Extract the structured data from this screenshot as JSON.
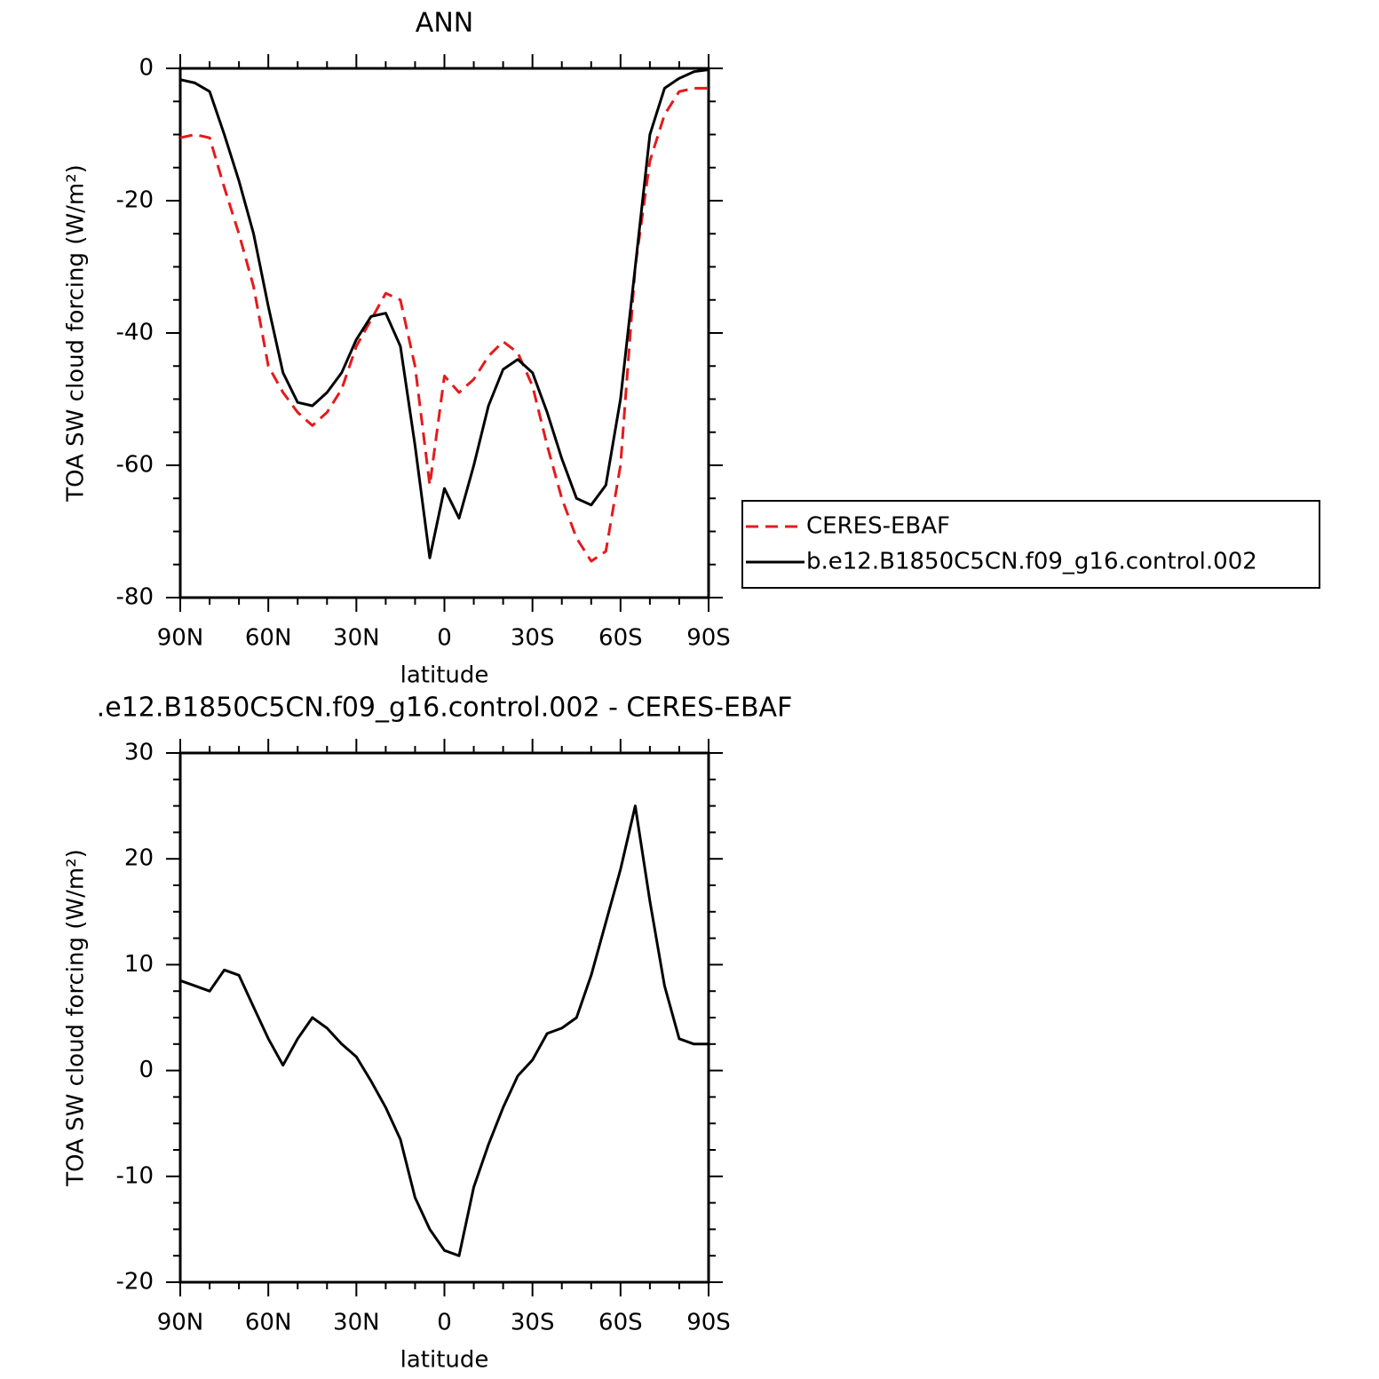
{
  "chart_data": [
    {
      "type": "line",
      "title": "ANN",
      "xlabel": "latitude",
      "ylabel": "TOA SW cloud forcing (W/m²)",
      "x": [
        90,
        85,
        80,
        75,
        70,
        65,
        60,
        55,
        50,
        45,
        40,
        35,
        30,
        25,
        20,
        15,
        10,
        5,
        0,
        -5,
        -10,
        -15,
        -20,
        -25,
        -30,
        -35,
        -40,
        -45,
        -50,
        -55,
        -60,
        -65,
        -70,
        -75,
        -80,
        -85,
        -90
      ],
      "xlim": [
        90,
        -90
      ],
      "xticks": [
        {
          "value": 90,
          "label": "90N"
        },
        {
          "value": 60,
          "label": "60N"
        },
        {
          "value": 30,
          "label": "30N"
        },
        0,
        {
          "value": -30,
          "label": "30S"
        },
        {
          "value": -60,
          "label": "60S"
        },
        {
          "value": -90,
          "label": "90S"
        }
      ],
      "ylim": [
        -80,
        0
      ],
      "yticks": [
        -80,
        -60,
        -40,
        -20,
        0
      ],
      "legend": "right",
      "series": [
        {
          "name": "CERES-EBAF",
          "color": "#e41a1c",
          "line_style": "dashed",
          "values": [
            -10.5,
            -10,
            -10.5,
            -18,
            -25,
            -33,
            -45,
            -49,
            -52,
            -54,
            -52,
            -48.5,
            -42,
            -38,
            -34,
            -35,
            -45,
            -63,
            -46.5,
            -49,
            -47,
            -43.5,
            -41.3,
            -43,
            -48,
            -57,
            -65,
            -71,
            -74.5,
            -73,
            -60,
            -30,
            -14,
            -7,
            -3.5,
            -3,
            -3
          ]
        },
        {
          "name": "b.e12.B1850C5CN.f09_g16.control.002",
          "color": "#000000",
          "line_style": "solid",
          "values": [
            -1.7,
            -2.2,
            -3.5,
            -10,
            -17,
            -25,
            -36,
            -46,
            -50.5,
            -51,
            -49,
            -46,
            -41,
            -37.5,
            -37,
            -42,
            -57,
            -74,
            -63.5,
            -68,
            -60,
            -51,
            -45.5,
            -44,
            -46,
            -52,
            -59,
            -65,
            -66,
            -63,
            -50,
            -30,
            -10,
            -3,
            -1.5,
            -0.5,
            -0.2
          ]
        }
      ]
    },
    {
      "type": "line",
      "title": ".e12.B1850C5CN.f09_g16.control.002 - CERES-EBAF",
      "xlabel": "latitude",
      "ylabel": "TOA SW cloud forcing (W/m²)",
      "x": [
        90,
        85,
        80,
        75,
        70,
        65,
        60,
        55,
        50,
        45,
        40,
        35,
        30,
        25,
        20,
        15,
        10,
        5,
        0,
        -5,
        -10,
        -15,
        -20,
        -25,
        -30,
        -35,
        -40,
        -45,
        -50,
        -55,
        -60,
        -65,
        -70,
        -75,
        -80,
        -85,
        -90
      ],
      "xlim": [
        90,
        -90
      ],
      "xticks": [
        {
          "value": 90,
          "label": "90N"
        },
        {
          "value": 60,
          "label": "60N"
        },
        {
          "value": 30,
          "label": "30N"
        },
        0,
        {
          "value": -30,
          "label": "30S"
        },
        {
          "value": -60,
          "label": "60S"
        },
        {
          "value": -90,
          "label": "90S"
        }
      ],
      "ylim": [
        -20,
        30
      ],
      "yticks": [
        -20,
        -10,
        0,
        10,
        20,
        30
      ],
      "series": [
        {
          "color": "#000000",
          "line_style": "solid",
          "values": [
            8.5,
            8,
            7.5,
            9.5,
            9,
            6,
            3,
            0.5,
            3,
            5,
            4,
            2.5,
            1.3,
            -1,
            -3.5,
            -6.5,
            -12,
            -15,
            -17,
            -17.5,
            -11,
            -7,
            -3.5,
            -0.5,
            1,
            3.5,
            4,
            5,
            9,
            14,
            19,
            25,
            16,
            8,
            3,
            2.5,
            2.5
          ]
        }
      ]
    }
  ]
}
